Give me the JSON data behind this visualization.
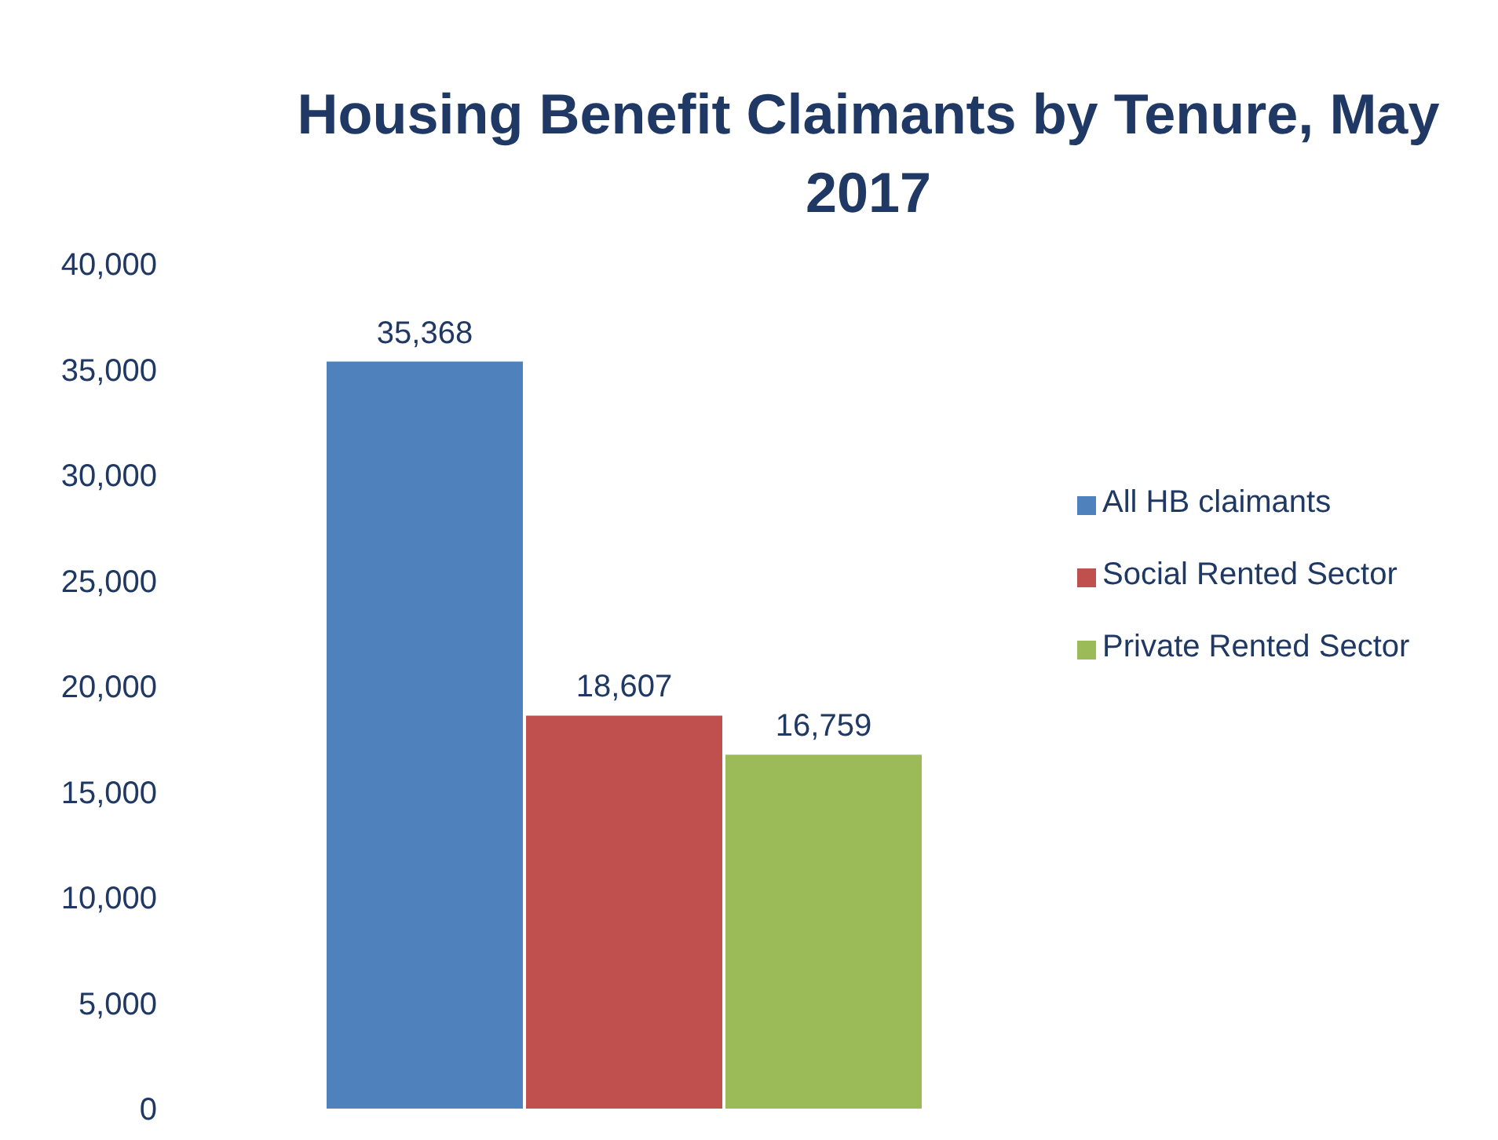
{
  "chart_data": {
    "type": "bar",
    "title": "Housing Benefit Claimants by Tenure, May 2017",
    "categories": [
      null
    ],
    "series": [
      {
        "name": "All HB claimants",
        "color": "#4f81bd",
        "values": [
          35368
        ],
        "value_labels": [
          "35,368"
        ]
      },
      {
        "name": "Social Rented Sector",
        "color": "#c0504d",
        "values": [
          18607
        ],
        "value_labels": [
          "18,607"
        ]
      },
      {
        "name": "Private Rented Sector",
        "color": "#9bbb59",
        "values": [
          16759
        ],
        "value_labels": [
          "16,759"
        ]
      }
    ],
    "ylim": [
      0,
      40000
    ],
    "yticks": [
      0,
      {
        "value": 5000,
        "label": "5,000"
      },
      {
        "value": 10000,
        "label": "10,000"
      },
      {
        "value": 15000,
        "label": "15,000"
      },
      {
        "value": 20000,
        "label": "20,000"
      },
      {
        "value": 25000,
        "label": "25,000"
      },
      {
        "value": 30000,
        "label": "30,000"
      },
      {
        "value": 35000,
        "label": "35,000"
      },
      {
        "value": 40000,
        "label": "40,000"
      }
    ],
    "legend": "right"
  }
}
